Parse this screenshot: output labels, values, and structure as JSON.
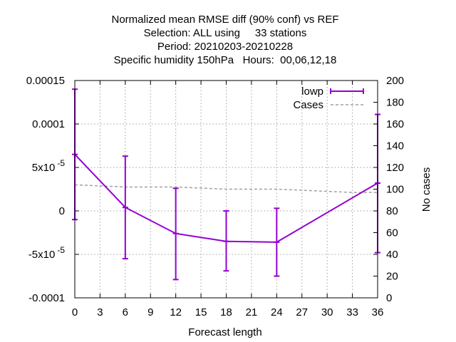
{
  "chart_data": {
    "type": "line",
    "title_lines": [
      "Normalized mean RMSE diff (90% conf) vs REF",
      "Selection: ALL using     33 stations",
      "Period: 20210203-20210228",
      "Specific humidity 150hPa   Hours:  00,06,12,18"
    ],
    "xlabel": "Forecast length",
    "ylabel_right": "No cases",
    "xlim": [
      0,
      36
    ],
    "ylim": [
      -0.0001,
      0.00015
    ],
    "y2lim": [
      0,
      200
    ],
    "x_ticks": [
      "0",
      "3",
      "6",
      "9",
      "12",
      "15",
      "18",
      "21",
      "24",
      "27",
      "30",
      "33",
      "36"
    ],
    "x_tick_values": [
      0,
      3,
      6,
      9,
      12,
      15,
      18,
      21,
      24,
      27,
      30,
      33,
      36
    ],
    "y_ticks": [
      {
        "value": 0.00015,
        "label": "0.00015"
      },
      {
        "value": 0.0001,
        "label": "0.0001"
      },
      {
        "value": 5e-05,
        "mant": "5x10",
        "exp": "-5"
      },
      {
        "value": 0,
        "label": "0"
      },
      {
        "value": -5e-05,
        "mant": "-5x10",
        "exp": "-5"
      },
      {
        "value": -0.0001,
        "label": "-0.0001"
      }
    ],
    "y2_ticks": [
      "0",
      "20",
      "40",
      "60",
      "80",
      "100",
      "120",
      "140",
      "160",
      "180",
      "200"
    ],
    "y2_tick_values": [
      0,
      20,
      40,
      60,
      80,
      100,
      120,
      140,
      160,
      180,
      200
    ],
    "grid": true,
    "legend_position": "top-right",
    "series": [
      {
        "name": "lowp",
        "color": "#9400d3",
        "axis": "y",
        "style": "line-errorbars",
        "x": [
          0,
          6,
          12,
          18,
          24,
          36
        ],
        "y": [
          6.5e-05,
          4e-06,
          -2.6e-05,
          -3.5e-05,
          -3.6e-05,
          3.2e-05
        ],
        "ylow": [
          -1e-05,
          -5.5e-05,
          -7.9e-05,
          -6.9e-05,
          -7.5e-05,
          -4.8e-05
        ],
        "yhigh": [
          0.00014,
          6.3e-05,
          2.6e-05,
          0.0,
          3e-06,
          0.000111
        ]
      },
      {
        "name": "Cases",
        "color": "#a0a0a0",
        "axis": "y2",
        "style": "dashed",
        "x": [
          0,
          6,
          12,
          18,
          24,
          27,
          30,
          33,
          36
        ],
        "y": [
          104,
          102,
          102,
          100,
          100,
          99,
          98,
          97,
          97
        ]
      }
    ]
  }
}
